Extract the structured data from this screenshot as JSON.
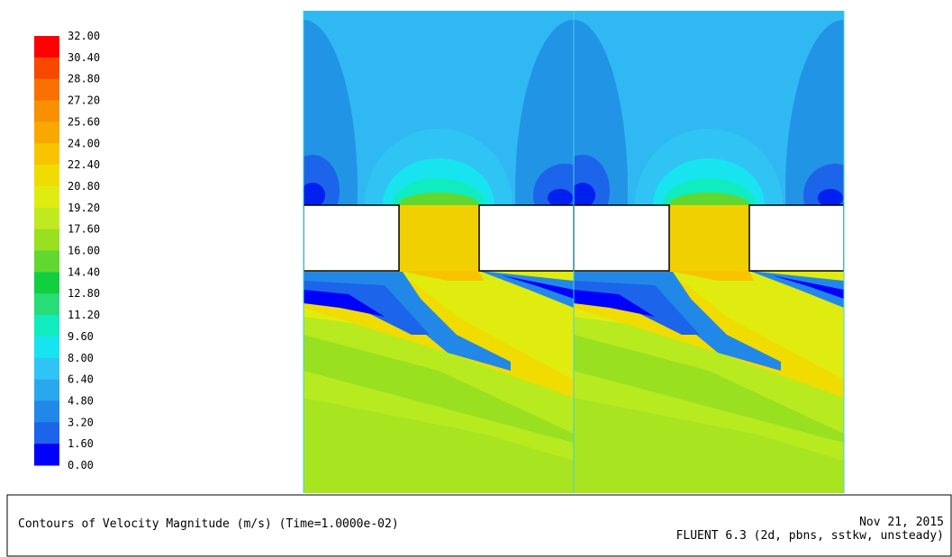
{
  "legend": {
    "labels": [
      "32.00",
      "30.40",
      "28.80",
      "27.20",
      "25.60",
      "24.00",
      "22.40",
      "20.80",
      "19.20",
      "17.60",
      "16.00",
      "14.40",
      "12.80",
      "11.20",
      "9.60",
      "8.00",
      "6.40",
      "4.80",
      "3.20",
      "1.60",
      "0.00"
    ],
    "colors": [
      "#ff0000",
      "#f84800",
      "#f87000",
      "#f89000",
      "#f8a800",
      "#f8c400",
      "#f0dc00",
      "#e0ec10",
      "#c0ea20",
      "#98e020",
      "#60d830",
      "#10d040",
      "#28dc78",
      "#10ecc0",
      "#18e4f0",
      "#30c4f4",
      "#2aa8ee",
      "#2288e8",
      "#1c64ea",
      "#0000ff"
    ]
  },
  "footer": {
    "caption": "Contours of Velocity Magnitude (m/s)  (Time=1.0000e-02)",
    "date": "Nov 21, 2015",
    "software": "FLUENT 6.3 (2d, pbns, sstkw, unsteady)"
  }
}
